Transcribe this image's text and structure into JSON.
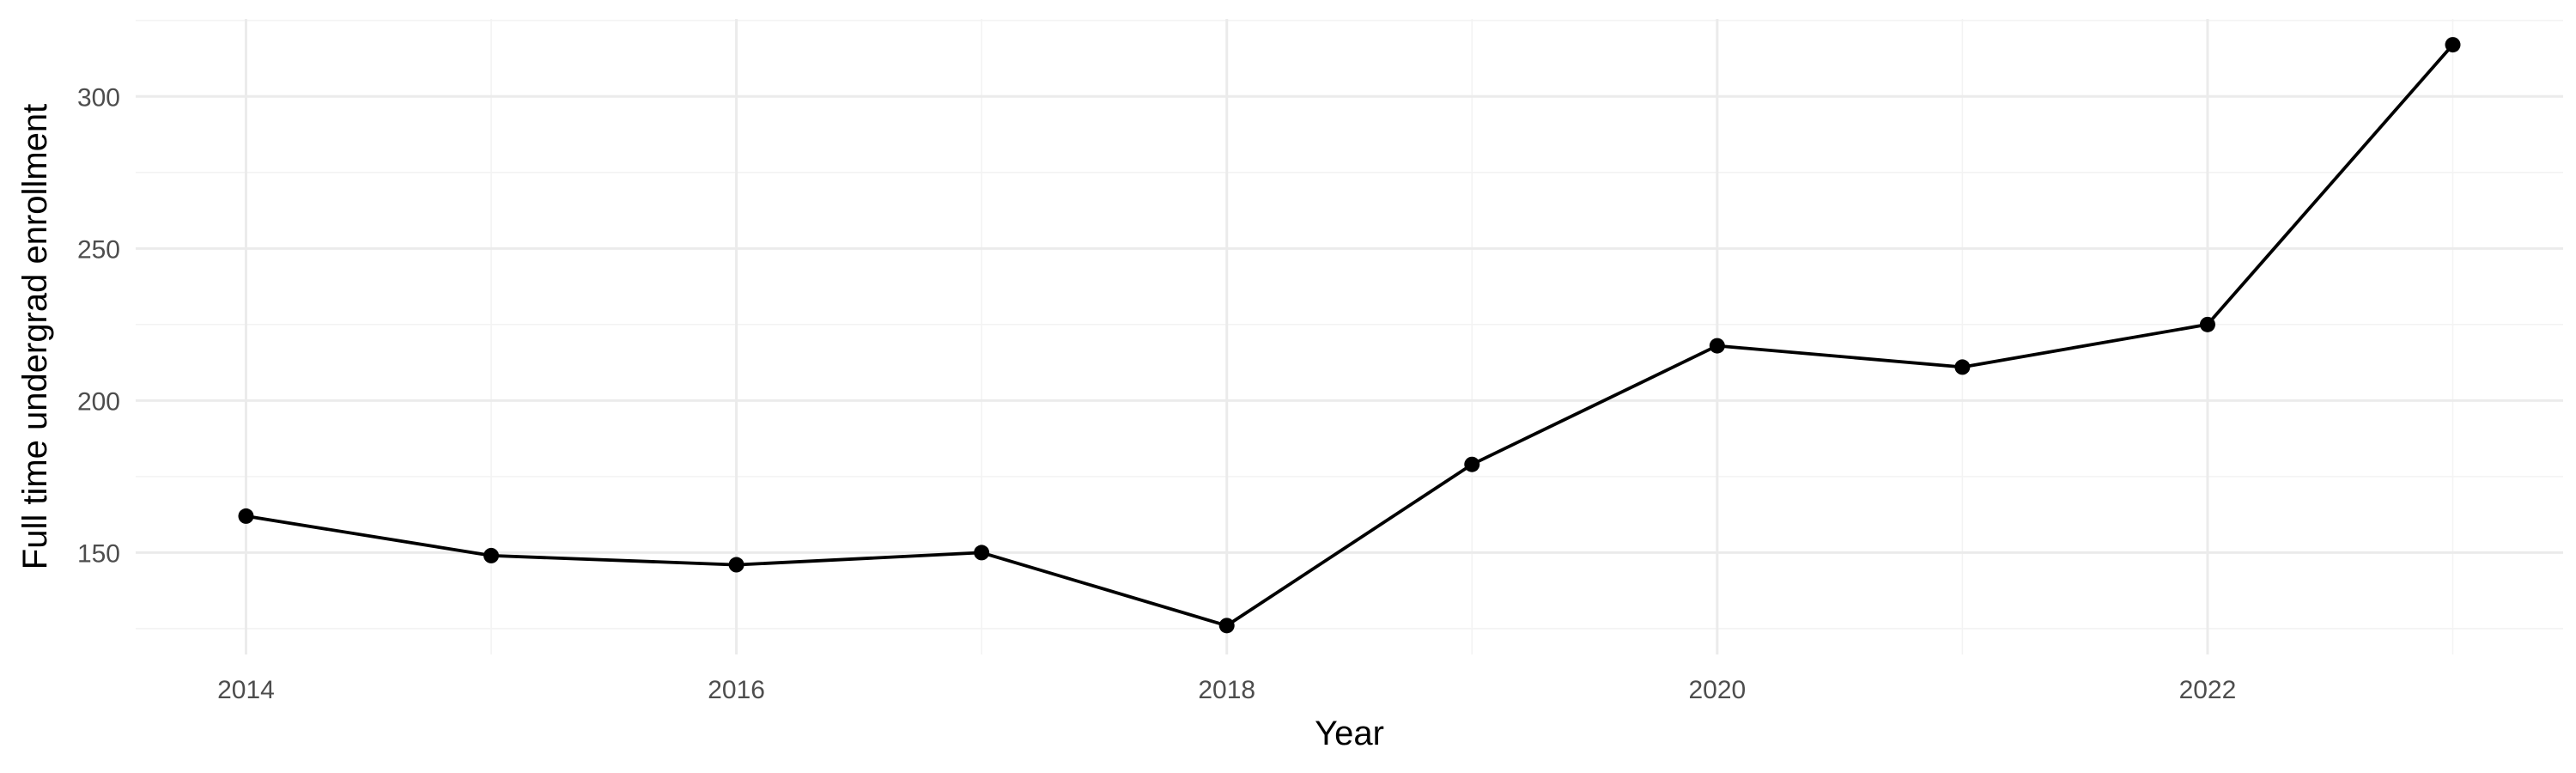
{
  "chart_data": {
    "type": "line",
    "title": "",
    "xlabel": "Year",
    "ylabel": "Full time undergrad enrollment",
    "x": [
      2014,
      2015,
      2016,
      2017,
      2018,
      2019,
      2020,
      2021,
      2022,
      2023
    ],
    "series": [
      {
        "values": [
          162,
          149,
          146,
          150,
          126,
          179,
          218,
          211,
          225,
          317
        ]
      }
    ],
    "xlim": [
      2013.55,
      2023.45
    ],
    "ylim": [
      116.5,
      325.5
    ],
    "x_ticks": [
      2014,
      2016,
      2018,
      2020,
      2022
    ],
    "x_tick_labels": [
      "2014",
      "2016",
      "2018",
      "2020",
      "2022"
    ],
    "y_ticks": [
      150,
      200,
      250,
      300
    ],
    "y_tick_labels": [
      "150",
      "200",
      "250",
      "300"
    ],
    "grid": true,
    "legend": "none",
    "colors": {
      "line": "#000000",
      "point": "#000000",
      "grid": "#ebebeb",
      "background": "#ffffff"
    }
  }
}
